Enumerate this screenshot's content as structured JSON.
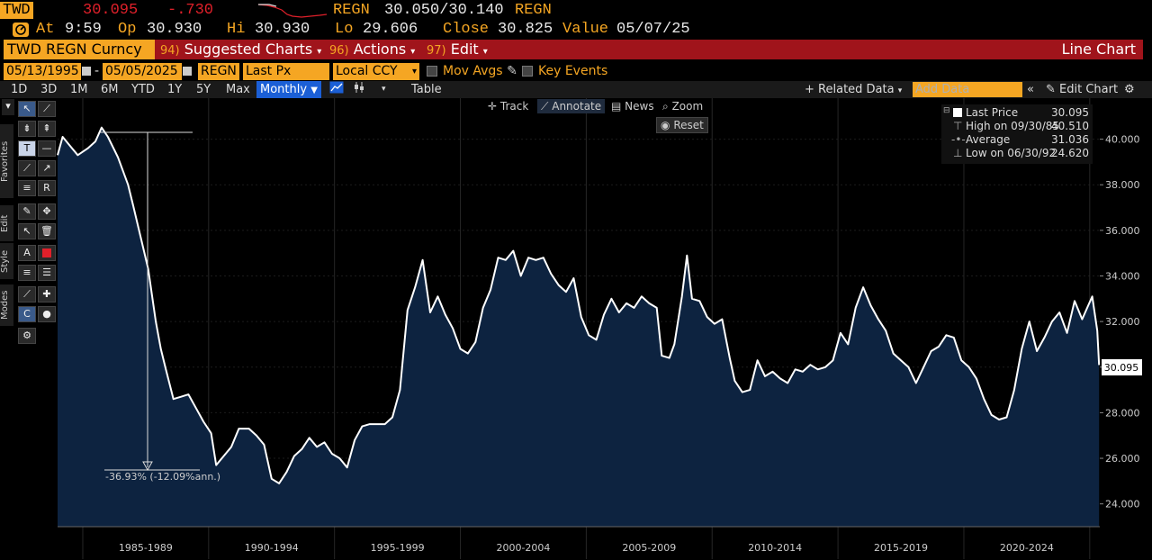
{
  "quote": {
    "ticker": "TWD",
    "last": "30.095",
    "change": "-.730",
    "at_label": "At",
    "at_time": "9:59",
    "op_label": "Op",
    "op_value": "30.930",
    "hi_label": "Hi",
    "hi_value": "30.930",
    "lo_label": "Lo",
    "lo_value": "29.606",
    "close_label": "Close",
    "close_value": "30.825",
    "value_label": "Value",
    "value_date": "05/07/25",
    "source1": "REGN",
    "bid_ask": "30.050/30.140",
    "source2": "REGN"
  },
  "command_bar": {
    "security": "TWD REGN Curncy",
    "suggested_num": "94)",
    "suggested_label": "Suggested Charts",
    "actions_num": "96)",
    "actions_label": "Actions",
    "edit_num": "97)",
    "edit_label": "Edit",
    "chart_type": "Line Chart"
  },
  "params": {
    "start_date": "05/13/1995",
    "end_date": "05/05/2025",
    "source": "REGN",
    "field": "Last Px",
    "currency": "Local CCY",
    "mov_avgs": "Mov Avgs",
    "key_events": "Key Events"
  },
  "periods": {
    "items": [
      "1D",
      "3D",
      "1M",
      "6M",
      "YTD",
      "1Y",
      "5Y",
      "Max"
    ],
    "selected": "Monthly",
    "table": "Table",
    "related_data": "Related Data",
    "add_data_placeholder": "Add Data",
    "edit_chart": "Edit Chart"
  },
  "chart_tools": {
    "track": "Track",
    "annotate": "Annotate",
    "news": "News",
    "zoom": "Zoom",
    "reset": "Reset"
  },
  "side_labels": {
    "favorites": "Favorites",
    "edit": "Edit",
    "style": "Style",
    "modes": "Modes"
  },
  "legend": {
    "last_price_label": "Last Price",
    "last_price_value": "30.095",
    "high_label": "High on 09/30/85",
    "high_value": "40.510",
    "average_label": "Average",
    "average_value": "31.036",
    "low_label": "Low on 06/30/92",
    "low_value": "24.620"
  },
  "annotation": {
    "drawdown_text": "-36.93% (-12.09%ann.)"
  },
  "colors": {
    "accent_orange": "#f5a623",
    "command_red": "#a0141b",
    "change_red": "#e0202a",
    "area_fill": "#0d2340",
    "line": "#ffffff"
  },
  "chart_data": {
    "type": "area",
    "ylim": [
      23.0,
      41.8
    ],
    "yticks": [
      "24.000",
      "26.000",
      "28.000",
      "30.000",
      "32.000",
      "34.000",
      "36.000",
      "38.000",
      "40.000"
    ],
    "last_value_label": "30.095",
    "x_period_labels": [
      "1985-1989",
      "1990-1994",
      "1995-1999",
      "2000-2004",
      "2005-2009",
      "2010-2014",
      "2015-2019",
      "2020-2024"
    ],
    "x_start": 1984.0,
    "x_end": 2025.4,
    "series": [
      {
        "values": [
          [
            1984.0,
            39.3
          ],
          [
            1984.2,
            40.1
          ],
          [
            1984.5,
            39.7
          ],
          [
            1984.8,
            39.3
          ],
          [
            1985.2,
            39.6
          ],
          [
            1985.5,
            39.9
          ],
          [
            1985.75,
            40.51
          ],
          [
            1986.0,
            40.1
          ],
          [
            1986.4,
            39.2
          ],
          [
            1986.8,
            38.0
          ],
          [
            1987.0,
            37.1
          ],
          [
            1987.3,
            35.7
          ],
          [
            1987.6,
            34.3
          ],
          [
            1987.9,
            32.0
          ],
          [
            1988.1,
            30.8
          ],
          [
            1988.3,
            29.9
          ],
          [
            1988.6,
            28.6
          ],
          [
            1988.9,
            28.7
          ],
          [
            1989.2,
            28.8
          ],
          [
            1989.5,
            28.2
          ],
          [
            1989.8,
            27.6
          ],
          [
            1990.1,
            27.1
          ],
          [
            1990.3,
            25.7
          ],
          [
            1990.6,
            26.1
          ],
          [
            1990.9,
            26.5
          ],
          [
            1991.2,
            27.3
          ],
          [
            1991.6,
            27.3
          ],
          [
            1991.9,
            27.0
          ],
          [
            1992.2,
            26.6
          ],
          [
            1992.5,
            25.1
          ],
          [
            1992.8,
            24.9
          ],
          [
            1993.1,
            25.4
          ],
          [
            1993.4,
            26.1
          ],
          [
            1993.7,
            26.4
          ],
          [
            1994.0,
            26.9
          ],
          [
            1994.3,
            26.5
          ],
          [
            1994.6,
            26.7
          ],
          [
            1994.9,
            26.2
          ],
          [
            1995.2,
            26.0
          ],
          [
            1995.5,
            25.6
          ],
          [
            1995.8,
            26.8
          ],
          [
            1996.1,
            27.4
          ],
          [
            1996.4,
            27.5
          ],
          [
            1996.7,
            27.5
          ],
          [
            1997.0,
            27.5
          ],
          [
            1997.3,
            27.8
          ],
          [
            1997.6,
            29.0
          ],
          [
            1997.9,
            32.5
          ],
          [
            1998.2,
            33.5
          ],
          [
            1998.5,
            34.7
          ],
          [
            1998.8,
            32.4
          ],
          [
            1999.1,
            33.1
          ],
          [
            1999.4,
            32.3
          ],
          [
            1999.7,
            31.7
          ],
          [
            2000.0,
            30.8
          ],
          [
            2000.3,
            30.6
          ],
          [
            2000.6,
            31.1
          ],
          [
            2000.9,
            32.6
          ],
          [
            2001.2,
            33.4
          ],
          [
            2001.5,
            34.8
          ],
          [
            2001.8,
            34.7
          ],
          [
            2002.1,
            35.1
          ],
          [
            2002.4,
            34.0
          ],
          [
            2002.7,
            34.8
          ],
          [
            2003.0,
            34.7
          ],
          [
            2003.3,
            34.8
          ],
          [
            2003.6,
            34.1
          ],
          [
            2003.9,
            33.6
          ],
          [
            2004.2,
            33.3
          ],
          [
            2004.5,
            33.9
          ],
          [
            2004.8,
            32.2
          ],
          [
            2005.1,
            31.4
          ],
          [
            2005.4,
            31.2
          ],
          [
            2005.7,
            32.3
          ],
          [
            2006.0,
            33.0
          ],
          [
            2006.3,
            32.4
          ],
          [
            2006.6,
            32.8
          ],
          [
            2006.9,
            32.6
          ],
          [
            2007.2,
            33.1
          ],
          [
            2007.5,
            32.8
          ],
          [
            2007.8,
            32.6
          ],
          [
            2008.0,
            30.5
          ],
          [
            2008.3,
            30.4
          ],
          [
            2008.5,
            31.0
          ],
          [
            2008.8,
            33.1
          ],
          [
            2009.0,
            34.9
          ],
          [
            2009.2,
            33.0
          ],
          [
            2009.5,
            32.9
          ],
          [
            2009.8,
            32.2
          ],
          [
            2010.1,
            31.9
          ],
          [
            2010.4,
            32.1
          ],
          [
            2010.7,
            30.4
          ],
          [
            2010.9,
            29.4
          ],
          [
            2011.2,
            28.9
          ],
          [
            2011.5,
            29.0
          ],
          [
            2011.8,
            30.3
          ],
          [
            2012.1,
            29.6
          ],
          [
            2012.4,
            29.8
          ],
          [
            2012.7,
            29.5
          ],
          [
            2013.0,
            29.3
          ],
          [
            2013.3,
            29.9
          ],
          [
            2013.6,
            29.8
          ],
          [
            2013.9,
            30.1
          ],
          [
            2014.2,
            29.9
          ],
          [
            2014.5,
            30.0
          ],
          [
            2014.8,
            30.3
          ],
          [
            2015.1,
            31.5
          ],
          [
            2015.4,
            31.0
          ],
          [
            2015.7,
            32.6
          ],
          [
            2016.0,
            33.5
          ],
          [
            2016.3,
            32.7
          ],
          [
            2016.6,
            32.1
          ],
          [
            2016.9,
            31.6
          ],
          [
            2017.2,
            30.6
          ],
          [
            2017.5,
            30.3
          ],
          [
            2017.8,
            30.0
          ],
          [
            2018.1,
            29.3
          ],
          [
            2018.4,
            30.0
          ],
          [
            2018.7,
            30.7
          ],
          [
            2019.0,
            30.9
          ],
          [
            2019.3,
            31.4
          ],
          [
            2019.6,
            31.3
          ],
          [
            2019.9,
            30.3
          ],
          [
            2020.2,
            30.0
          ],
          [
            2020.5,
            29.5
          ],
          [
            2020.8,
            28.6
          ],
          [
            2021.1,
            27.9
          ],
          [
            2021.4,
            27.7
          ],
          [
            2021.7,
            27.8
          ],
          [
            2022.0,
            29.0
          ],
          [
            2022.3,
            30.8
          ],
          [
            2022.6,
            32.0
          ],
          [
            2022.9,
            30.7
          ],
          [
            2023.2,
            31.3
          ],
          [
            2023.5,
            32.0
          ],
          [
            2023.8,
            32.4
          ],
          [
            2024.1,
            31.5
          ],
          [
            2024.4,
            32.9
          ],
          [
            2024.7,
            32.1
          ],
          [
            2024.9,
            32.6
          ],
          [
            2025.1,
            33.1
          ],
          [
            2025.3,
            31.6
          ],
          [
            2025.37,
            30.095
          ]
        ]
      }
    ]
  }
}
